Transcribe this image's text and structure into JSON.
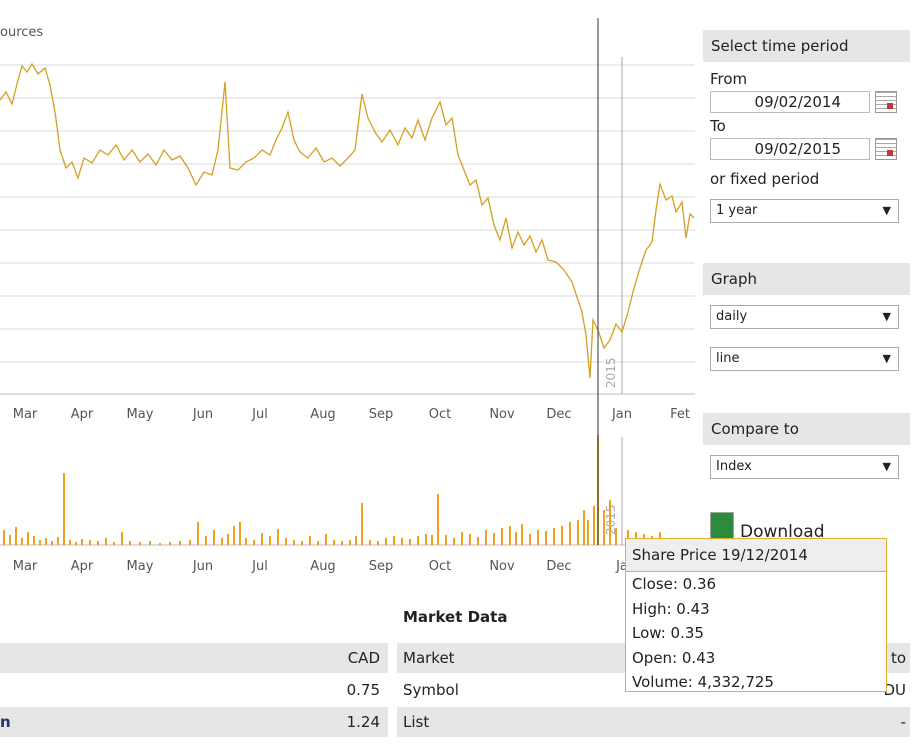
{
  "chart_panel": {
    "title": "ources",
    "price_months": [
      "Mar",
      "Apr",
      "May",
      "Jun",
      "Jul",
      "Aug",
      "Sep",
      "Oct",
      "Nov",
      "Dec",
      "Jan",
      "Fet"
    ],
    "volume_months": [
      "Mar",
      "Apr",
      "May",
      "Jun",
      "Jul",
      "Aug",
      "Sep",
      "Oct",
      "Nov",
      "Dec",
      "Ja"
    ],
    "year_markers": [
      "2015",
      "2015"
    ]
  },
  "sidebar": {
    "time_period": {
      "header": "Select time period",
      "from_label": "From",
      "from_value": "09/02/2014",
      "to_label": "To",
      "to_value": "09/02/2015",
      "fixed_label": "or fixed period",
      "fixed_value": "1 year"
    },
    "graph": {
      "header": "Graph",
      "interval": "daily",
      "style": "line"
    },
    "compare": {
      "header": "Compare to",
      "value": "Index"
    },
    "download": "Download"
  },
  "tooltip": {
    "title": "Share Price 19/12/2014",
    "lines": [
      "Close: 0.36",
      "High: 0.43",
      "Low: 0.35",
      "Open: 0.43",
      "Volume: 4,332,725"
    ]
  },
  "tables": {
    "left": {
      "rows": [
        [
          null,
          "CAD"
        ],
        [
          null,
          "0.75"
        ],
        [
          "n",
          "1.24"
        ]
      ]
    },
    "right": {
      "title": "Market Data",
      "rows": [
        [
          "Market",
          "to"
        ],
        [
          "Symbol",
          "DU"
        ],
        [
          "List",
          "-"
        ]
      ]
    }
  }
}
